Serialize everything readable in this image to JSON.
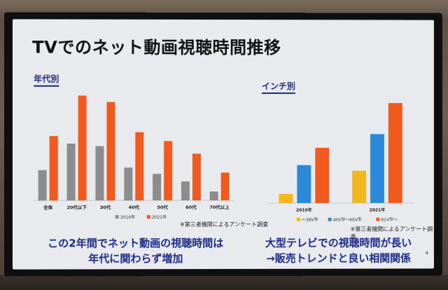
{
  "slide": {
    "title": "TVでのネット動画視聴時間推移",
    "page_number": "4",
    "message_left_line1": "この2年間でネット動画の視聴時間は",
    "message_left_line2": "年代に関わらず増加",
    "message_right_line1": "大型テレビでの視聴時間が長い",
    "message_right_line2": "→販売トレンドと良い相関関係"
  },
  "chart_data": [
    {
      "type": "bar",
      "title": "年代別",
      "categories": [
        "全体",
        "20代以下",
        "30代",
        "40代",
        "50代",
        "60代",
        "70代以上"
      ],
      "series": [
        {
          "name": "2019年",
          "color": "#8c8c8c",
          "values": [
            24,
            45,
            43,
            26,
            21,
            15,
            7
          ]
        },
        {
          "name": "2021年",
          "color": "#f15a1f",
          "values": [
            51,
            83,
            78,
            54,
            47,
            37,
            22
          ]
        }
      ],
      "ylim": [
        0,
        90
      ],
      "legend": "bottom",
      "note": "※第三者機関によるアンケート調査"
    },
    {
      "type": "bar",
      "title": "インチ別",
      "categories": [
        "2019年",
        "2021年"
      ],
      "series": [
        {
          "name": "～39V型",
          "color": "#f2b81c",
          "values": [
            8,
            28
          ]
        },
        {
          "name": "40V型～60V型",
          "color": "#2a8ad8",
          "values": [
            33,
            60
          ]
        },
        {
          "name": "61V型～",
          "color": "#f15a1f",
          "values": [
            48,
            87
          ]
        }
      ],
      "ylim": [
        0,
        90
      ],
      "legend": "bottom",
      "note": "※第三者機関によるアンケート調査"
    }
  ]
}
